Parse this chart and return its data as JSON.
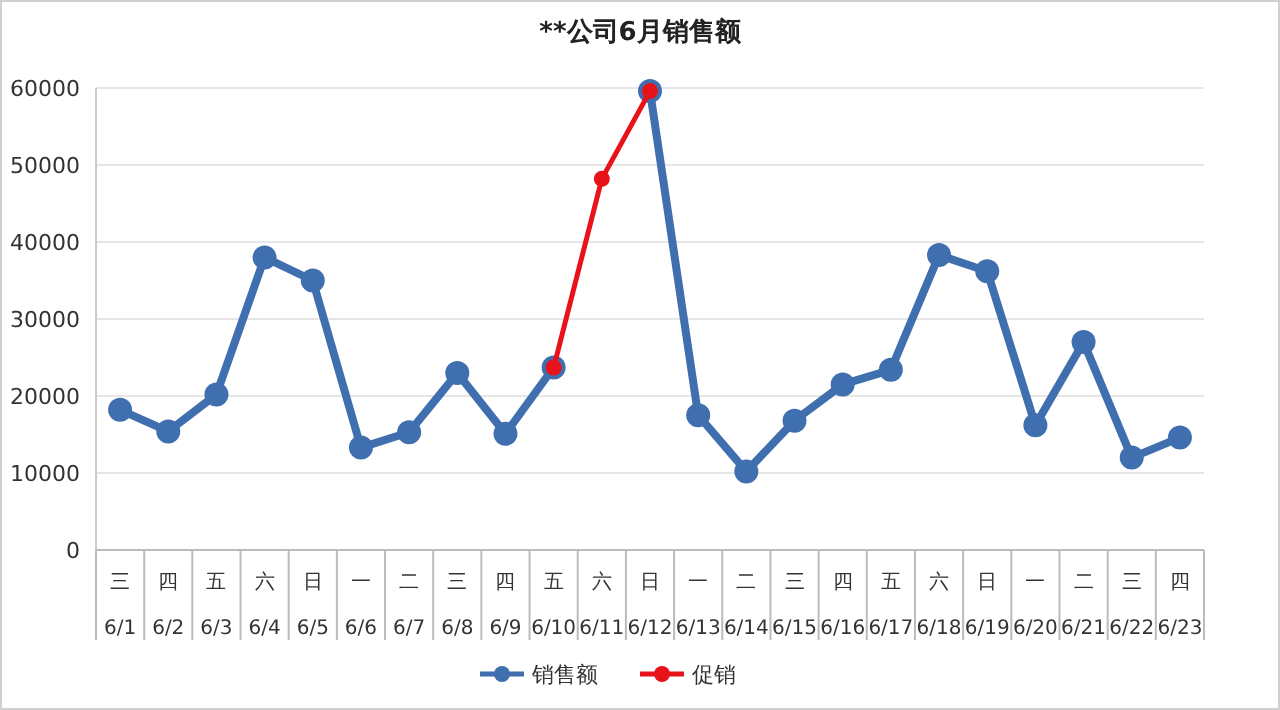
{
  "chart_data": {
    "type": "line",
    "title": "**公司6月销售额",
    "categories": [
      "三\n6/1",
      "四\n6/2",
      "五\n6/3",
      "六\n6/4",
      "日\n6/5",
      "一\n6/6",
      "二\n6/7",
      "三\n6/8",
      "四\n6/9",
      "五\n6/10",
      "六\n6/11",
      "日\n6/12",
      "一\n6/13",
      "二\n6/14",
      "三\n6/15",
      "四\n6/16",
      "五\n6/17",
      "六\n6/18",
      "日\n6/19",
      "一\n6/20",
      "二\n6/21",
      "三\n6/22",
      "四\n6/23"
    ],
    "series": [
      {
        "name": "销售额",
        "color": "#3f6fae",
        "values": [
          18200,
          15400,
          20200,
          38000,
          35000,
          13300,
          15300,
          23000,
          15100,
          23700,
          null,
          59600,
          17500,
          10200,
          16800,
          21500,
          23400,
          38300,
          36200,
          16200,
          27000,
          12000,
          14600
        ]
      },
      {
        "name": "促销",
        "color": "#e8121a",
        "values": [
          null,
          null,
          null,
          null,
          null,
          null,
          null,
          null,
          null,
          23700,
          48200,
          59600,
          null,
          null,
          null,
          null,
          null,
          null,
          null,
          null,
          null,
          null,
          null
        ]
      }
    ],
    "ylim": [
      0,
      60000
    ],
    "yticks": [
      0,
      10000,
      20000,
      30000,
      40000,
      50000,
      60000
    ],
    "grid": "y",
    "legend": "bottom",
    "marker": "circle",
    "line_style": "solid"
  }
}
